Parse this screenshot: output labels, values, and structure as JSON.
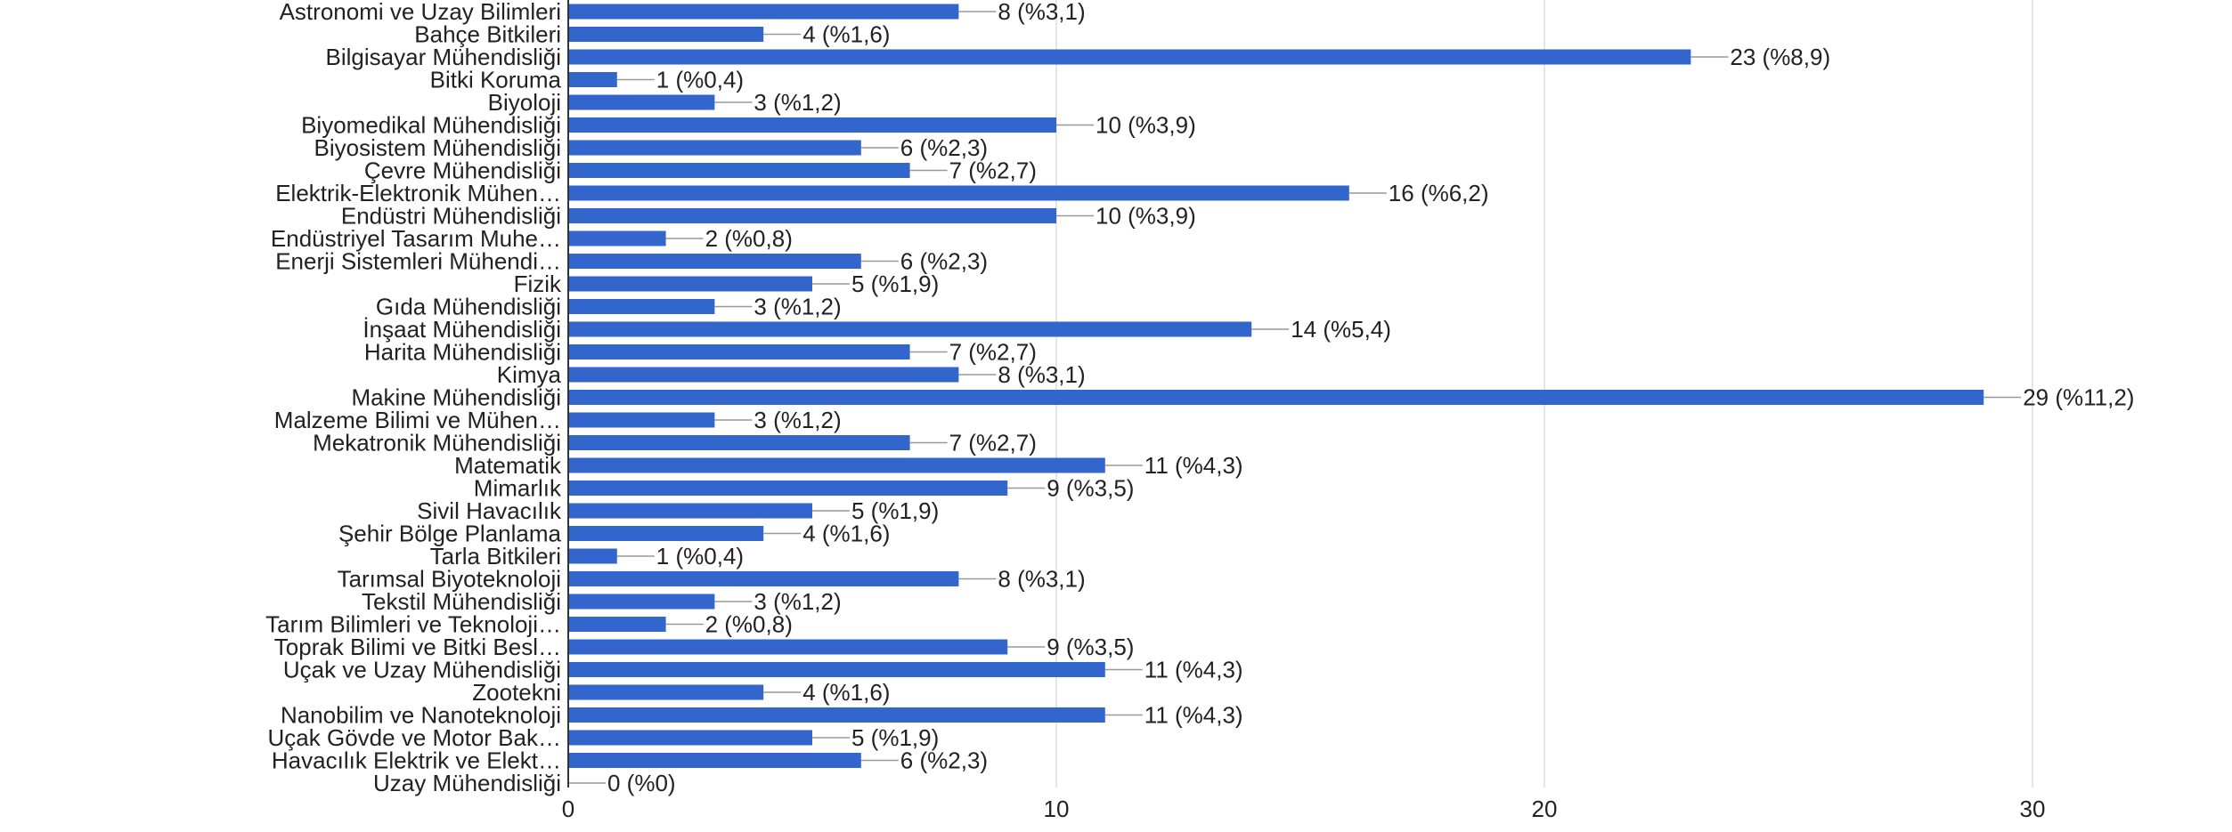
{
  "chart_data": {
    "type": "bar",
    "orientation": "horizontal",
    "categories": [
      "Astronomi ve Uzay Bilimleri",
      "Bahçe Bitkileri",
      "Bilgisayar Mühendisliği",
      "Bitki Koruma",
      "Biyoloji",
      "Biyomedikal Mühendisliği",
      "Biyosistem Mühendisliği",
      "Çevre Mühendisliği",
      "Elektrik-Elektronik Mühen…",
      "Endüstri Mühendisliği",
      "Endüstriyel Tasarım Muhe…",
      "Enerji Sistemleri Mühendi…",
      "Fizik",
      "Gıda Mühendisliği",
      "İnşaat Mühendisliği",
      "Harita Mühendisliği",
      "Kimya",
      "Makine Mühendisliği",
      "Malzeme Bilimi ve Mühen…",
      "Mekatronik Mühendisliği",
      "Matematik",
      "Mimarlık",
      "Sivil Havacılık",
      "Şehir Bölge Planlama",
      "Tarla Bitkileri",
      "Tarımsal Biyoteknoloji",
      "Tekstil Mühendisliği",
      "Tarım Bilimleri ve Teknoloji…",
      "Toprak Bilimi ve Bitki Besl…",
      "Uçak ve Uzay Mühendisliği",
      "Zootekni",
      "Nanobilim ve Nanoteknoloji",
      "Uçak Gövde ve Motor Bak…",
      "Havacılık Elektrik ve Elekt…",
      "Uzay Mühendisliği"
    ],
    "values": [
      8,
      4,
      23,
      1,
      3,
      10,
      6,
      7,
      16,
      10,
      2,
      6,
      5,
      3,
      14,
      7,
      8,
      29,
      3,
      7,
      11,
      9,
      5,
      4,
      1,
      8,
      3,
      2,
      9,
      11,
      4,
      11,
      5,
      6,
      0
    ],
    "data_labels": [
      "8 (%3,1)",
      "4 (%1,6)",
      "23 (%8,9)",
      "1 (%0,4)",
      "3 (%1,2)",
      "10 (%3,9)",
      "6 (%2,3)",
      "7 (%2,7)",
      "16 (%6,2)",
      "10 (%3,9)",
      "2 (%0,8)",
      "6 (%2,3)",
      "5 (%1,9)",
      "3 (%1,2)",
      "14 (%5,4)",
      "7 (%2,7)",
      "8 (%3,1)",
      "29 (%11,2)",
      "3 (%1,2)",
      "7 (%2,7)",
      "11 (%4,3)",
      "9 (%3,5)",
      "5 (%1,9)",
      "4 (%1,6)",
      "1 (%0,4)",
      "8 (%3,1)",
      "3 (%1,2)",
      "2 (%0,8)",
      "9 (%3,5)",
      "11 (%4,3)",
      "4 (%1,6)",
      "11 (%4,3)",
      "5 (%1,9)",
      "6 (%2,3)",
      "0 (%0)"
    ],
    "x_ticks": [
      0,
      10,
      20,
      30
    ],
    "xlim": [
      0,
      33
    ],
    "title": "",
    "xlabel": "",
    "ylabel": "",
    "grid": true,
    "colors": {
      "bar": "#3366cc",
      "grid": "#e6e6e6",
      "axis": "#333333",
      "text": "#222222",
      "leader": "#999999"
    }
  }
}
